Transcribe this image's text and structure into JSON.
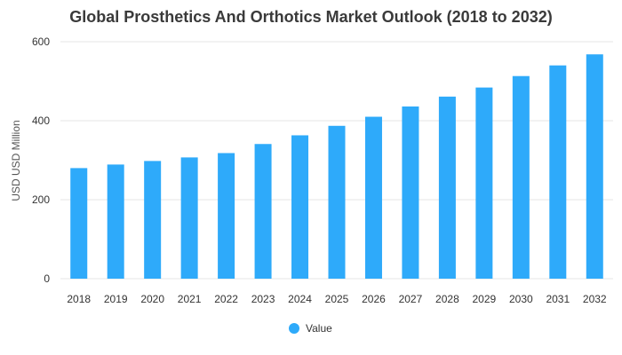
{
  "chart_data": {
    "type": "bar",
    "title": "Global Prosthetics And Orthotics Market Outlook (2018 to 2032)",
    "xlabel": "",
    "ylabel": "USD USD Million",
    "categories": [
      "2018",
      "2019",
      "2020",
      "2021",
      "2022",
      "2023",
      "2024",
      "2025",
      "2026",
      "2027",
      "2028",
      "2029",
      "2030",
      "2031",
      "2032"
    ],
    "series": [
      {
        "name": "Value",
        "values": [
          280,
          289,
          298,
          307,
          318,
          341,
          363,
          387,
          410,
          436,
          461,
          484,
          513,
          540,
          568
        ]
      }
    ],
    "ylim": [
      0,
      600
    ],
    "yticks": [
      "0",
      "200",
      "400",
      "600"
    ],
    "grid": true,
    "legend_position": "bottom-center",
    "colors": {
      "bar": "#2eaafa",
      "grid": "#e6e6e6"
    }
  }
}
